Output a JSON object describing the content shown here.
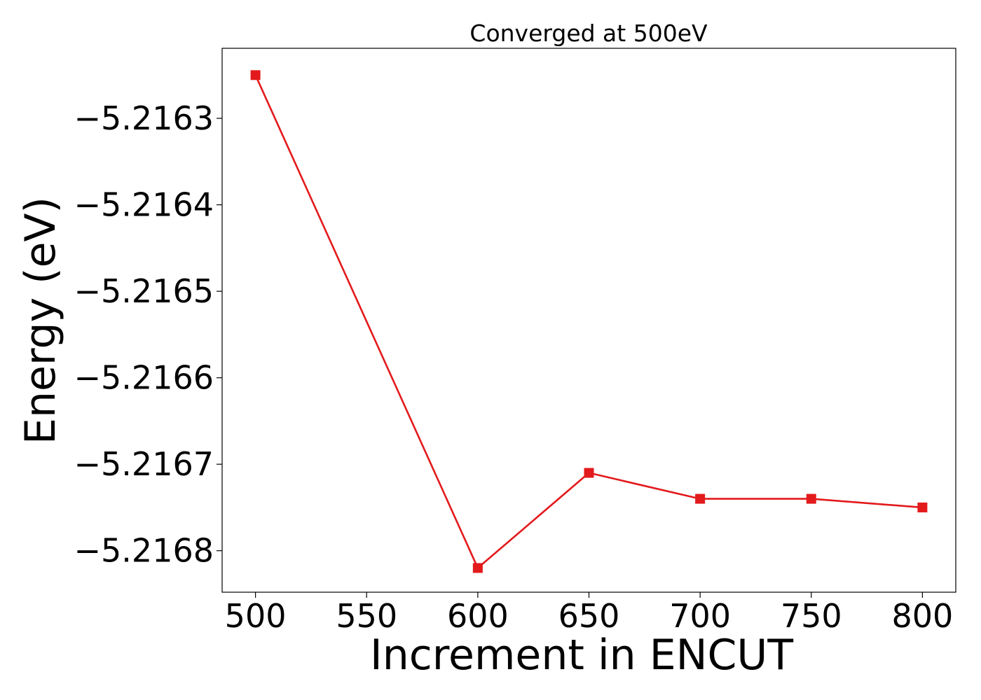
{
  "chart_data": {
    "type": "line",
    "title": "Converged at 500eV",
    "xlabel": "Increment in ENCUT",
    "ylabel": "Energy (eV)",
    "x": [
      500,
      600,
      650,
      700,
      750,
      800
    ],
    "series": [
      {
        "values": [
          -5.21625,
          -5.21682,
          -5.21671,
          -5.21674,
          -5.21674,
          -5.21675
        ],
        "color": "#e31a1c",
        "marker": "square"
      }
    ],
    "xticks": [
      500,
      550,
      600,
      650,
      700,
      750,
      800
    ],
    "xtick_labels": [
      "500",
      "550",
      "600",
      "650",
      "700",
      "750",
      "800"
    ],
    "yticks": [
      -5.2163,
      -5.2164,
      -5.2165,
      -5.2166,
      -5.2167,
      -5.2168
    ],
    "ytick_labels": [
      "−5.2163",
      "−5.2164",
      "−5.2165",
      "−5.2166",
      "−5.2167",
      "−5.2168"
    ],
    "xlim": [
      485,
      815
    ],
    "ylim": [
      -5.216848,
      -5.216219
    ],
    "grid": false,
    "legend": false
  }
}
